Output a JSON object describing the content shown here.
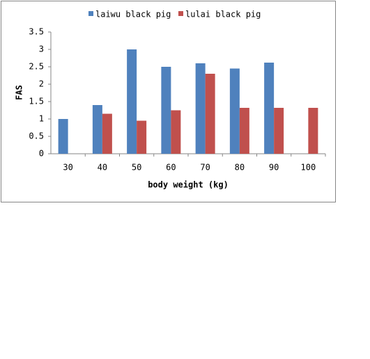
{
  "chart_data": {
    "type": "bar",
    "categories": [
      "30",
      "40",
      "50",
      "60",
      "70",
      "80",
      "90",
      "100"
    ],
    "series": [
      {
        "name": "laiwu black pig",
        "color": "#4f81bd",
        "values": [
          1.0,
          1.4,
          3.0,
          2.5,
          2.6,
          2.45,
          2.62,
          null
        ]
      },
      {
        "name": "lulai black pig",
        "color": "#c0504d",
        "values": [
          null,
          1.15,
          0.95,
          1.25,
          2.3,
          1.32,
          1.32,
          1.32
        ]
      }
    ],
    "ylim": [
      0,
      3.5
    ],
    "yticks": [
      0,
      0.5,
      1,
      1.5,
      2,
      2.5,
      3,
      3.5
    ],
    "ylabel": "FAS",
    "xlabel": "body weight (kg)",
    "legend": "top",
    "grid": false
  }
}
